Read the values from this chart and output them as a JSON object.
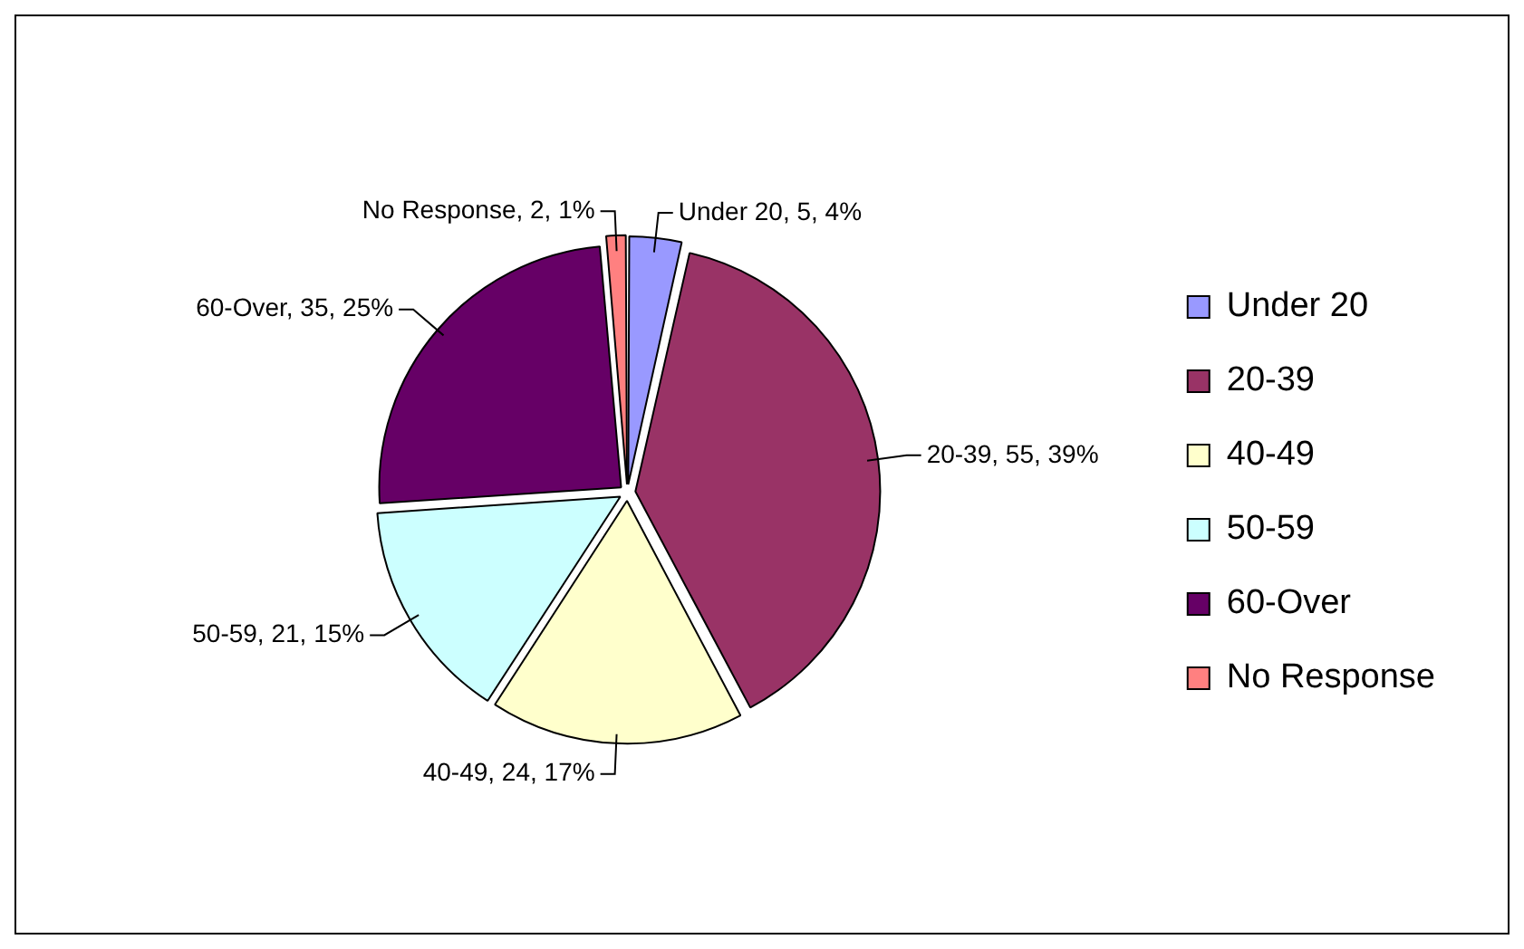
{
  "chart_data": {
    "type": "pie",
    "categories": [
      "Under 20",
      "20-39",
      "40-49",
      "50-59",
      "60-Over",
      "No Response"
    ],
    "values": [
      5,
      55,
      24,
      21,
      35,
      2
    ],
    "colors": [
      "#9999ff",
      "#993366",
      "#ffffcc",
      "#ccffff",
      "#660066",
      "#ff8080"
    ],
    "value_labels": [
      "Under 20, 5, 4%",
      "20-39, 55, 39%",
      "40-49, 24, 17%",
      "50-59, 21, 15%",
      "60-Over, 35, 25%",
      "No Response, 2, 1%"
    ],
    "legend": "right"
  }
}
